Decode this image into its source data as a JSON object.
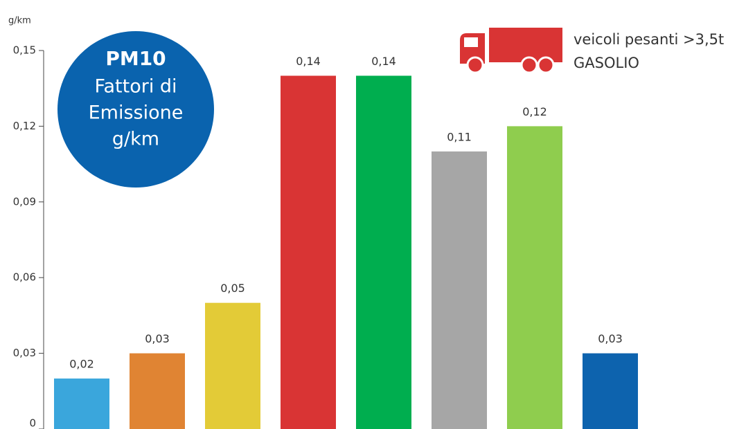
{
  "chart_data": {
    "type": "bar",
    "title_lines": [
      "PM10",
      "Fattori di",
      "Emissione",
      "g/km"
    ],
    "y_label": "g/km",
    "legend_lines": [
      "veicoli pesanti >3,5t",
      "GASOLIO"
    ],
    "categories": [
      null,
      null,
      null,
      null,
      null,
      null,
      null,
      null
    ],
    "values": [
      0.02,
      0.03,
      0.05,
      0.14,
      0.14,
      0.11,
      0.12,
      0.03
    ],
    "value_labels": [
      "0,02",
      "0,03",
      "0,05",
      "0,14",
      "0,14",
      "0,11",
      "0,12",
      "0,03"
    ],
    "colors": [
      "#3aa6dc",
      "#e08433",
      "#e3cb37",
      "#d93434",
      "#00ae4f",
      "#a6a6a6",
      "#8fcd4e",
      "#0d63ae"
    ],
    "ylim": [
      0,
      0.15
    ],
    "yticks": [
      {
        "value": 0,
        "label": "0"
      },
      {
        "value": 0.03,
        "label": "0,03"
      },
      {
        "value": 0.06,
        "label": "0,06"
      },
      {
        "value": 0.09,
        "label": "0,09"
      },
      {
        "value": 0.12,
        "label": "0,12"
      },
      {
        "value": 0.15,
        "label": "0,15"
      }
    ]
  }
}
